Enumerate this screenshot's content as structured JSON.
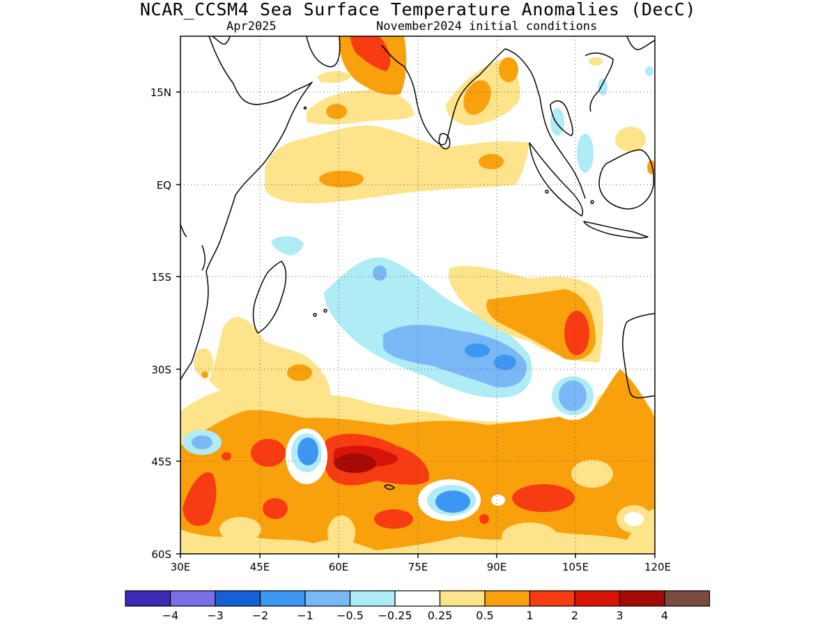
{
  "title": "NCAR_CCSM4 Sea Surface Temperature Anomalies (DecC)",
  "valid_month": "Apr2025",
  "initial_conditions": "November2024 initial conditions",
  "map": {
    "lon_range": [
      30,
      120
    ],
    "lat_range": [
      -60,
      24
    ],
    "lon_ticks": [
      {
        "value": 30,
        "label": "30E"
      },
      {
        "value": 45,
        "label": "45E"
      },
      {
        "value": 60,
        "label": "60E"
      },
      {
        "value": 75,
        "label": "75E"
      },
      {
        "value": 90,
        "label": "90E"
      },
      {
        "value": 105,
        "label": "105E"
      },
      {
        "value": 120,
        "label": "120E"
      }
    ],
    "lat_ticks": [
      {
        "value": 15,
        "label": "15N"
      },
      {
        "value": 0,
        "label": "EQ"
      },
      {
        "value": -15,
        "label": "15S"
      },
      {
        "value": -30,
        "label": "30S"
      },
      {
        "value": -45,
        "label": "45S"
      },
      {
        "value": -60,
        "label": "60S"
      }
    ],
    "gridlines": "dotted"
  },
  "colorbar": {
    "colors": [
      "#3b2bb5",
      "#7a6ee6",
      "#1560d6",
      "#3d97f2",
      "#7ab8f5",
      "#b0ecf6",
      "#ffffff",
      "#fde38a",
      "#f9a00d",
      "#f73b12",
      "#d81408",
      "#a50a04",
      "#7a4c3e"
    ],
    "labels": [
      "−4",
      "−3",
      "−2",
      "−1",
      "−0.5",
      "−0.25",
      "0.25",
      "0.5",
      "1",
      "2",
      "3",
      "4"
    ]
  },
  "colors": {
    "land_outline": "#000000",
    "ocean_neutral": "#ffffff"
  }
}
